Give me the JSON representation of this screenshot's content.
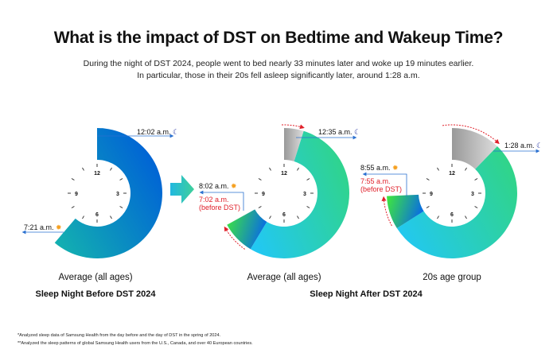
{
  "title": "What is the impact of DST on Bedtime and Wakeup Time?",
  "subtitle": [
    "During the night of DST 2024, people went to bed nearly 33 minutes later and woke up 19 minutes earlier.",
    "In particular, those in their 20s fell asleep significantly later, around 1:28 a.m."
  ],
  "colors": {
    "before": [
      "#14b5ae",
      "#0062d6"
    ],
    "after": [
      "#22c8f2",
      "#30d48a"
    ],
    "lost": [
      "#40ea38",
      "#0a6ee0"
    ],
    "shift": [
      "#999999",
      "#dddddd"
    ],
    "accent_red": "#e0202a",
    "line_blue": "#2a70d0"
  },
  "icons": {
    "bed": "moon-icon",
    "wake": "sun-icon",
    "transition": "arrow-right-icon"
  },
  "clock_numbers": [
    "12",
    "3",
    "6",
    "9"
  ],
  "charts": [
    {
      "label": "Average (all ages)",
      "bedtime": "12:02 a.m.",
      "wake": "7:21 a.m."
    },
    {
      "label": "Average (all ages)",
      "bedtime": "12:35 a.m.",
      "wake": "8:02 a.m.",
      "wake_before": "7:02 a.m.",
      "before_note": "(before DST)"
    },
    {
      "label": "20s age group",
      "bedtime": "1:28 a.m.",
      "wake": "8:55 a.m.",
      "wake_before": "7:55 a.m.",
      "before_note": "(before DST)"
    }
  ],
  "groups": {
    "before": "Sleep Night Before DST 2024",
    "after": "Sleep Night After DST 2024"
  },
  "footnotes": [
    "*Analyzed sleep data of Samsung Health from the day before and the day of DST in the spring of 2024.",
    "**Analyzed the sleep patterns of global Samsung Health users from the U.S., Canada, and over 40 European countries."
  ]
}
